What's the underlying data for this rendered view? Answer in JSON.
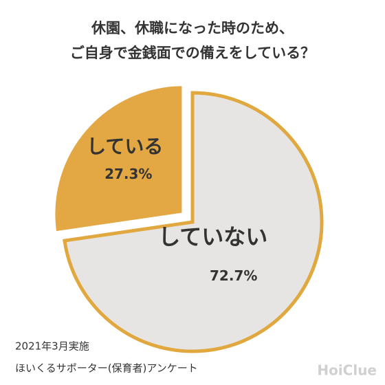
{
  "chart_data": {
    "type": "pie",
    "title": [
      "休園、休職になった時のため、",
      "ご自身で金銭面での備えをしている？"
    ],
    "categories": [
      "している",
      "していない"
    ],
    "values": [
      27.3,
      72.7
    ],
    "value_labels": [
      "27.3%",
      "72.7%"
    ],
    "colors": [
      "#e3a744",
      "#e6e5e3"
    ],
    "edge_color": "#e0a83e",
    "notes": [
      "2021年3月実施",
      "ほいくるサポーター(保育者)アンケート"
    ],
    "logo": "HoiClue"
  }
}
